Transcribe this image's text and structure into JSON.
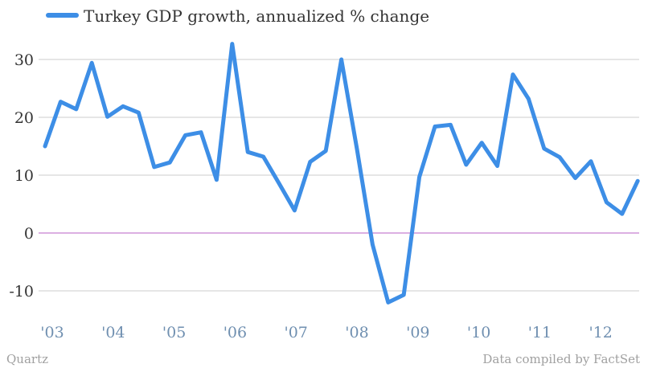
{
  "chart_data": {
    "type": "line",
    "title": "",
    "xlabel": "",
    "ylabel": "",
    "ylim": [
      -15,
      35
    ],
    "yticks": [
      -10,
      0,
      10,
      20,
      30
    ],
    "year_labels": [
      "'03",
      "'04",
      "'05",
      "'06",
      "'07",
      "'08",
      "'09",
      "'10",
      "'11",
      "'12"
    ],
    "legend_position": "top-left",
    "grid": true,
    "series": [
      {
        "name": "Turkey GDP growth, annualized % change",
        "color": "#3d8ee6",
        "x": [
          "2003-Q1",
          "2003-Q2",
          "2003-Q3",
          "2003-Q4",
          "2004-Q1",
          "2004-Q2",
          "2004-Q3",
          "2004-Q4",
          "2005-Q1",
          "2005-Q2",
          "2005-Q3",
          "2005-Q4",
          "2006-Q1",
          "2006-Q2",
          "2006-Q3",
          "2006-Q4",
          "2007-Q1",
          "2007-Q2",
          "2007-Q3",
          "2007-Q4",
          "2008-Q1",
          "2008-Q2",
          "2008-Q3",
          "2008-Q4",
          "2009-Q1",
          "2009-Q2",
          "2009-Q3",
          "2009-Q4",
          "2010-Q1",
          "2010-Q2",
          "2010-Q3",
          "2010-Q4",
          "2011-Q1",
          "2011-Q2",
          "2011-Q3",
          "2011-Q4",
          "2012-Q1",
          "2012-Q2",
          "2012-Q3"
        ],
        "values": [
          15,
          22.7,
          21.4,
          29.4,
          20.1,
          21.9,
          20.8,
          11.4,
          12.2,
          16.9,
          17.4,
          9.2,
          32.7,
          14,
          13.2,
          8.6,
          3.9,
          12.3,
          14.2,
          30,
          14.5,
          -2,
          -12,
          -10.7,
          9.7,
          18.4,
          18.7,
          11.8,
          15.6,
          11.6,
          27.4,
          23.2,
          14.6,
          13.1,
          9.5,
          12.4,
          5.3,
          3.3,
          9
        ]
      }
    ]
  },
  "footer": {
    "source_left": "Quartz",
    "source_right": "Data compiled by FactSet"
  }
}
